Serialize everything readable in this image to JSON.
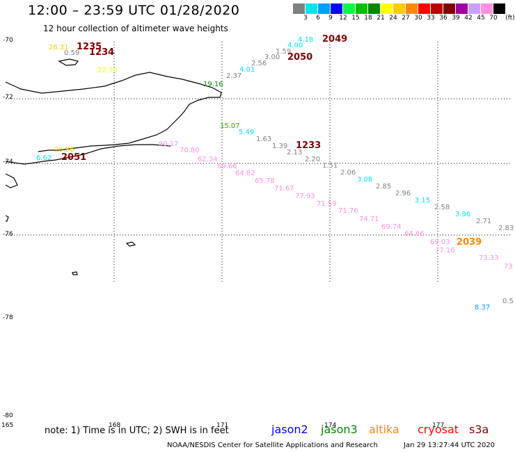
{
  "header": {
    "title": "12:00 – 23:59 UTC 01/28/2020",
    "subtitle": "12 hour collection of altimeter wave heights"
  },
  "legend": {
    "unit": "(ft)",
    "bins": [
      {
        "label": "3",
        "color": "#808080"
      },
      {
        "label": "6",
        "color": "#00e5ee"
      },
      {
        "label": "9",
        "color": "#00a0ff"
      },
      {
        "label": "12",
        "color": "#0000ff"
      },
      {
        "label": "15",
        "color": "#00ff40"
      },
      {
        "label": "18",
        "color": "#00c000"
      },
      {
        "label": "21",
        "color": "#008800"
      },
      {
        "label": "24",
        "color": "#ffff00"
      },
      {
        "label": "27",
        "color": "#ffcc00"
      },
      {
        "label": "30",
        "color": "#ff8800"
      },
      {
        "label": "33",
        "color": "#ff0000"
      },
      {
        "label": "36",
        "color": "#c00000"
      },
      {
        "label": "39",
        "color": "#800000"
      },
      {
        "label": "42",
        "color": "#a000a0"
      },
      {
        "label": "45",
        "color": "#c8a0ff"
      },
      {
        "label": "70",
        "color": "#ff90e0"
      },
      {
        "label": "",
        "color": "#000000"
      }
    ]
  },
  "axes": {
    "lat_labels": [
      "-70",
      "-72",
      "-74",
      "-76",
      "-78",
      "-80"
    ],
    "lon_labels": [
      "165",
      "168",
      "171",
      "174",
      "177"
    ]
  },
  "observations": [
    {
      "text": "26.31",
      "color": "#ffcc00"
    },
    {
      "text": "1235",
      "color": "#800000"
    },
    {
      "text": "0.59",
      "color": "#808080"
    },
    {
      "text": "1234",
      "color": "#800000"
    },
    {
      "text": "22.76",
      "color": "#ffff00"
    },
    {
      "text": "4.18",
      "color": "#00e5ee"
    },
    {
      "text": "2049",
      "color": "#800000"
    },
    {
      "text": "4.00",
      "color": "#00e5ee"
    },
    {
      "text": "1.59",
      "color": "#808080"
    },
    {
      "text": "3.00",
      "color": "#808080"
    },
    {
      "text": "2050",
      "color": "#800000"
    },
    {
      "text": "2.56",
      "color": "#808080"
    },
    {
      "text": "4.01",
      "color": "#00e5ee"
    },
    {
      "text": "2.37",
      "color": "#808080"
    },
    {
      "text": "19.16",
      "color": "#008800"
    },
    {
      "text": "15.07",
      "color": "#00c000"
    },
    {
      "text": "5.49",
      "color": "#00e5ee"
    },
    {
      "text": "1.63",
      "color": "#808080"
    },
    {
      "text": "1.39",
      "color": "#808080"
    },
    {
      "text": "1233",
      "color": "#800000"
    },
    {
      "text": "2.13",
      "color": "#808080"
    },
    {
      "text": "2.20",
      "color": "#808080"
    },
    {
      "text": "26.86",
      "color": "#ffcc00"
    },
    {
      "text": "6.62",
      "color": "#00e5ee"
    },
    {
      "text": "2051",
      "color": "#800000"
    },
    {
      "text": "80.17",
      "color": "#ff90e0"
    },
    {
      "text": "70.80",
      "color": "#ff90e0"
    },
    {
      "text": "62.34",
      "color": "#ff90e0"
    },
    {
      "text": "69.66",
      "color": "#ff90e0"
    },
    {
      "text": "1.51",
      "color": "#808080"
    },
    {
      "text": "2.06",
      "color": "#808080"
    },
    {
      "text": "64.82",
      "color": "#ff90e0"
    },
    {
      "text": "3.08",
      "color": "#00e5ee"
    },
    {
      "text": "65.78",
      "color": "#ff90e0"
    },
    {
      "text": "2.85",
      "color": "#808080"
    },
    {
      "text": "71.67",
      "color": "#ff90e0"
    },
    {
      "text": "2.96",
      "color": "#808080"
    },
    {
      "text": "77.93",
      "color": "#ff90e0"
    },
    {
      "text": "3.15",
      "color": "#00e5ee"
    },
    {
      "text": "71.59",
      "color": "#ff90e0"
    },
    {
      "text": "2.58",
      "color": "#808080"
    },
    {
      "text": "71.76",
      "color": "#ff90e0"
    },
    {
      "text": "3.96",
      "color": "#00e5ee"
    },
    {
      "text": "74.71",
      "color": "#ff90e0"
    },
    {
      "text": "2.71",
      "color": "#808080"
    },
    {
      "text": "69.74",
      "color": "#ff90e0"
    },
    {
      "text": "2.83",
      "color": "#808080"
    },
    {
      "text": "64.66",
      "color": "#ff90e0"
    },
    {
      "text": "69.03",
      "color": "#ff90e0"
    },
    {
      "text": "2039",
      "color": "#ff8800"
    },
    {
      "text": "77.16",
      "color": "#ff90e0"
    },
    {
      "text": "73.33",
      "color": "#ff90e0"
    },
    {
      "text": "73",
      "color": "#ff90e0"
    },
    {
      "text": "0.5",
      "color": "#808080"
    },
    {
      "text": "8.37",
      "color": "#00a0ff"
    }
  ],
  "footer": {
    "note": "note:  1) Time is in UTC;  2) SWH is in feet",
    "satellites": [
      {
        "name": "jason2",
        "color": "#0000ff"
      },
      {
        "name": "jason3",
        "color": "#008800"
      },
      {
        "name": "altika",
        "color": "#ff8800"
      },
      {
        "name": "cryosat",
        "color": "#ff0000"
      },
      {
        "name": "s3a",
        "color": "#800000"
      }
    ],
    "credit": "NOAA/NESDIS Center for Satellite Applications and Research",
    "timestamp": "Jan 29 13:27:44 UTC 2020"
  }
}
